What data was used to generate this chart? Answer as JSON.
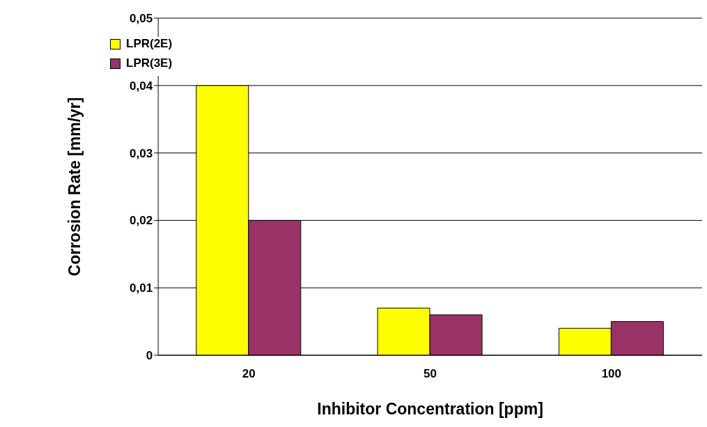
{
  "chart_data": {
    "type": "bar",
    "xlabel": "Inhibitor Concentration [ppm]",
    "ylabel": "Corrosion Rate [mm/yr]",
    "categories": [
      "20",
      "50",
      "100"
    ],
    "series": [
      {
        "name": "LPR(2E)",
        "color": "#ffff00",
        "values": [
          0.04,
          0.007,
          0.004
        ]
      },
      {
        "name": "LPR(3E)",
        "color": "#993366",
        "values": [
          0.02,
          0.006,
          0.005
        ]
      }
    ],
    "ylim": [
      0,
      0.05
    ],
    "yticks": [
      0,
      {
        "value": 0.01,
        "label": "0,01"
      },
      {
        "value": 0.02,
        "label": "0,02"
      },
      {
        "value": 0.03,
        "label": "0,03"
      },
      {
        "value": 0.04,
        "label": "0,04"
      },
      {
        "value": 0.05,
        "label": "0,05"
      }
    ],
    "grid": "y",
    "legend": "top left"
  }
}
